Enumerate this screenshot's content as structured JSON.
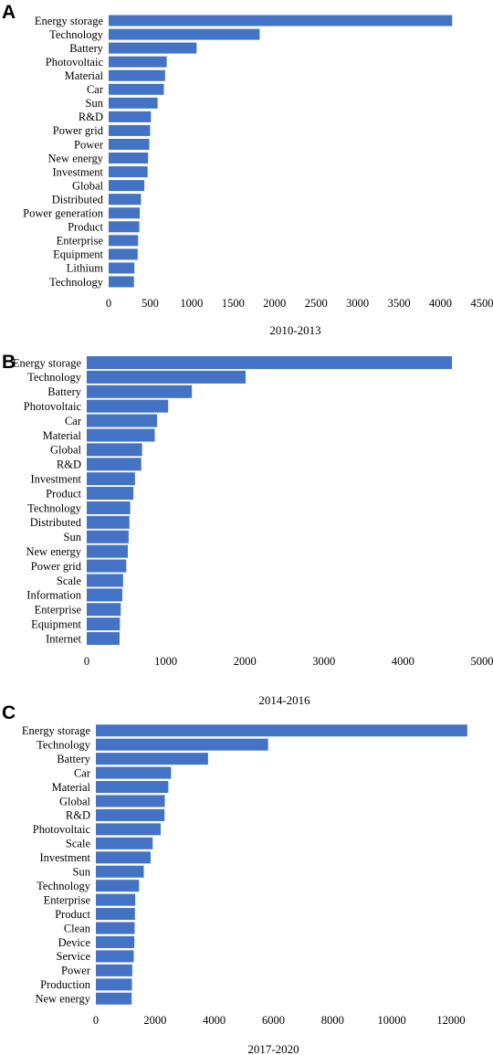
{
  "chart_data": [
    {
      "panel": "A",
      "type": "bar",
      "orientation": "horizontal",
      "xlabel": "2010-2013",
      "xlim": [
        0,
        4500
      ],
      "ticks": [
        0,
        500,
        1000,
        1500,
        2000,
        2500,
        3000,
        3500,
        4000,
        4500
      ],
      "grid": false,
      "color": "#4472c4",
      "categories": [
        "Energy storage",
        "Technology",
        "Battery",
        "Photovoltaic",
        "Material",
        "Car",
        "Sun",
        "R&D",
        "Power grid",
        "Power",
        "New energy",
        "Investment",
        "Global",
        "Distributed",
        "Power generation",
        "Product",
        "Enterprise",
        "Equipment",
        "Lithium",
        "Technology"
      ],
      "values": [
        4140,
        1820,
        1060,
        700,
        680,
        665,
        590,
        510,
        500,
        490,
        475,
        470,
        430,
        390,
        375,
        370,
        355,
        350,
        310,
        305
      ]
    },
    {
      "panel": "B",
      "type": "bar",
      "orientation": "horizontal",
      "xlabel": "2014-2016",
      "xlim": [
        0,
        5000
      ],
      "ticks": [
        0,
        1000,
        2000,
        3000,
        4000,
        5000
      ],
      "grid": false,
      "color": "#4472c4",
      "categories": [
        "Energy storage",
        "Technology",
        "Battery",
        "Photovoltaic",
        "Car",
        "Material",
        "Global",
        "R&D",
        "Investment",
        "Product",
        "Technology",
        "Distributed",
        "Sun",
        "New energy",
        "Power grid",
        "Scale",
        "Information",
        "Enterprise",
        "Equipment",
        "Internet"
      ],
      "values": [
        4620,
        2010,
        1330,
        1030,
        890,
        860,
        700,
        690,
        610,
        590,
        550,
        540,
        530,
        520,
        500,
        460,
        450,
        430,
        420,
        415
      ]
    },
    {
      "panel": "C",
      "type": "bar",
      "orientation": "horizontal",
      "xlabel": "2017-2020",
      "xlim": [
        0,
        12000
      ],
      "ticks": [
        0,
        2000,
        4000,
        6000,
        8000,
        10000,
        12000
      ],
      "grid": false,
      "color": "#4472c4",
      "categories": [
        "Energy storage",
        "Technology",
        "Battery",
        "Car",
        "Material",
        "Global",
        "R&D",
        "Photovoltaic",
        "Scale",
        "Investment",
        "Sun",
        "Technology",
        "Enterprise",
        "Product",
        "Clean",
        "Device",
        "Service",
        "Power",
        "Production",
        "New energy"
      ],
      "values": [
        12550,
        5820,
        3790,
        2540,
        2450,
        2330,
        2320,
        2190,
        1920,
        1850,
        1620,
        1460,
        1330,
        1320,
        1310,
        1300,
        1280,
        1230,
        1220,
        1210
      ]
    }
  ]
}
